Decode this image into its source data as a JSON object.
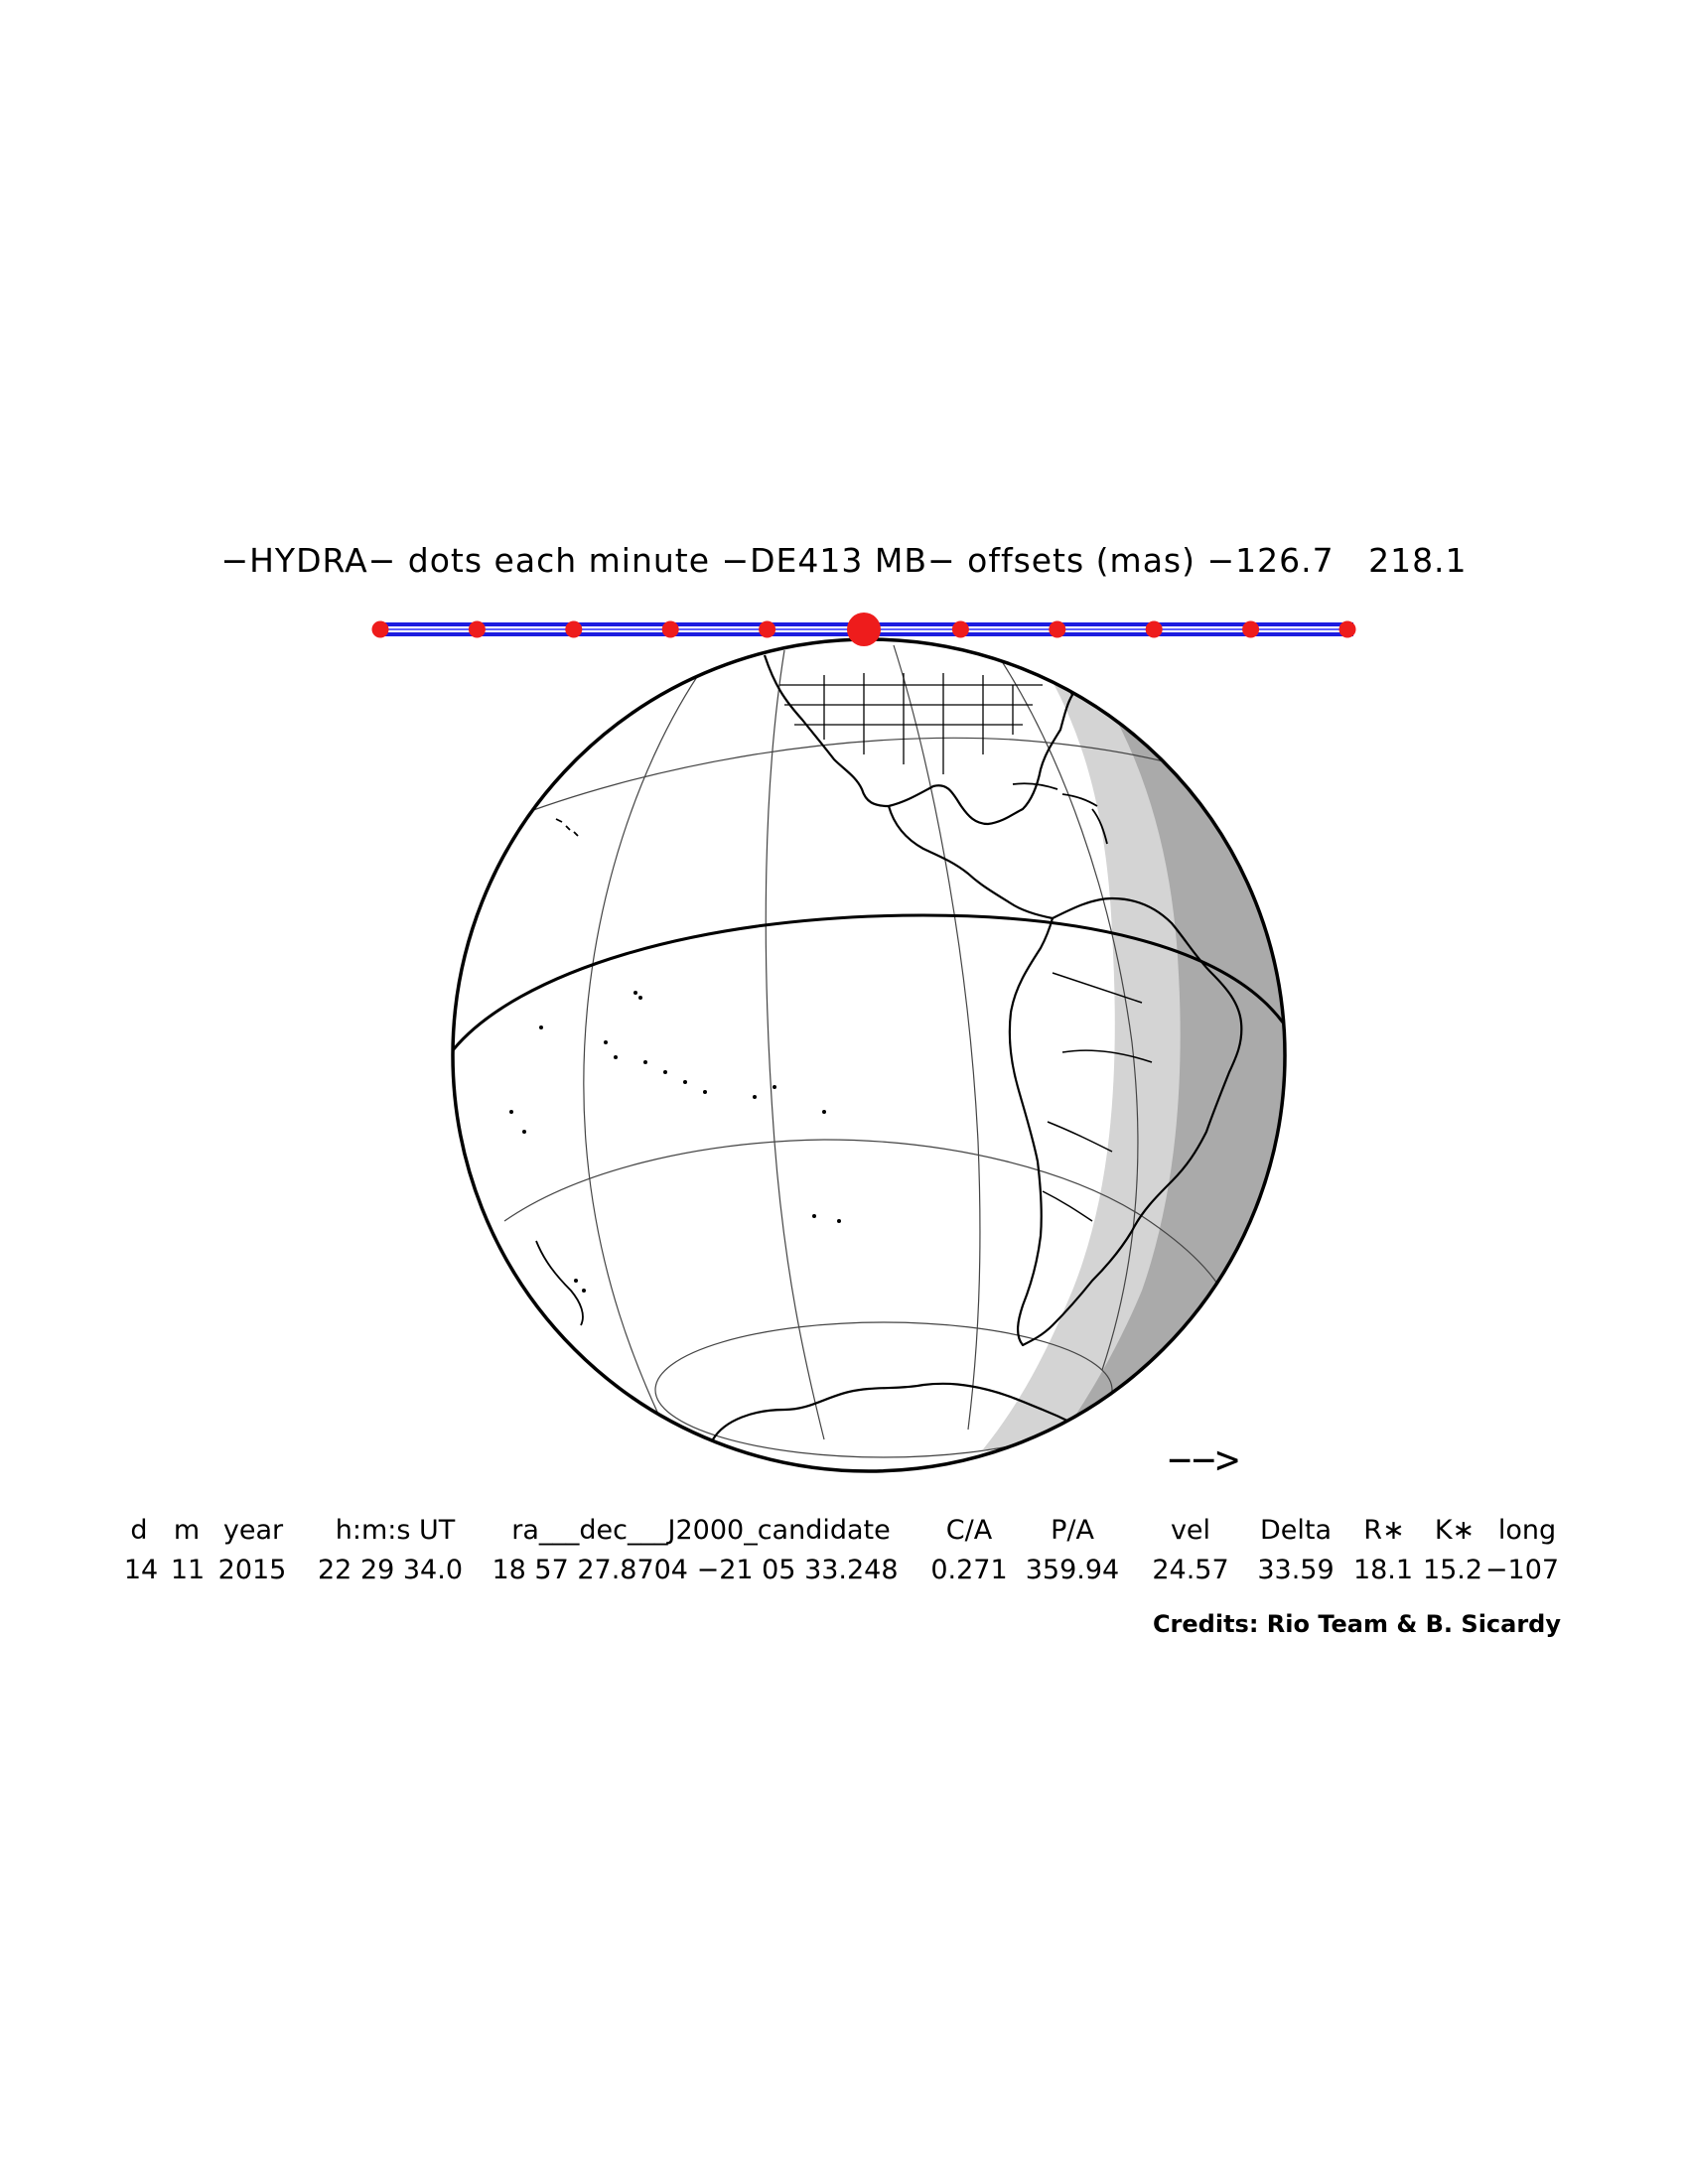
{
  "title": "−HYDRA− dots each minute −DE413 MB− offsets (mas) −126.7   218.1",
  "track": {
    "line_color": "#1c1ce0",
    "dot_color": "#ee1c1c",
    "dot_count": 11,
    "central_dot_index": 5
  },
  "globe": {
    "shadow_light": "#d3d3d3",
    "shadow_dark": "#a9a9a9",
    "line_color": "#000000",
    "grid_color": "#444444"
  },
  "direction_arrow": {
    "icon": "arrow-right",
    "label": "−−>"
  },
  "table": {
    "headers": [
      "d",
      "m",
      "year",
      "h:m:s UT",
      "ra___dec___J2000_candidate",
      "C/A",
      "P/A",
      "vel",
      "Delta",
      "R∗",
      "K∗",
      "long"
    ],
    "values": [
      "14",
      "11",
      "2015",
      "22 29 34.0",
      "18 57 27.8704 −21 05 33.248",
      "0.271",
      "359.94",
      "24.57",
      "33.59",
      "18.1",
      "15.2",
      "−107"
    ]
  },
  "credits": "Credits: Rio Team & B. Sicardy"
}
